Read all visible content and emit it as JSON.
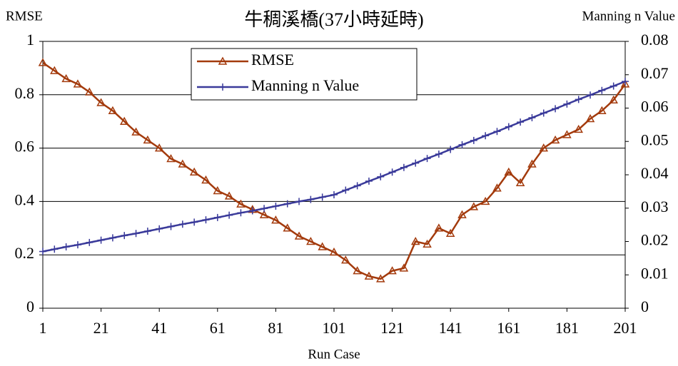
{
  "chart_data": {
    "type": "line",
    "title": "牛稠溪橋(37小時延時)",
    "xlabel": "Run Case",
    "ylabel": "RMSE",
    "y2label": "Manning n Value",
    "x": [
      1,
      5,
      9,
      13,
      17,
      21,
      25,
      29,
      33,
      37,
      41,
      45,
      49,
      53,
      57,
      61,
      65,
      69,
      73,
      77,
      81,
      85,
      89,
      93,
      97,
      101,
      105,
      109,
      113,
      117,
      121,
      125,
      129,
      133,
      137,
      141,
      145,
      149,
      153,
      157,
      161,
      165,
      169,
      173,
      177,
      181,
      185,
      189,
      193,
      197,
      201
    ],
    "series": [
      {
        "name": "RMSE",
        "color": "#a33a0c",
        "marker": "triangle",
        "values": [
          0.92,
          0.89,
          0.86,
          0.84,
          0.81,
          0.77,
          0.74,
          0.7,
          0.66,
          0.63,
          0.6,
          0.56,
          0.54,
          0.51,
          0.48,
          0.44,
          0.42,
          0.39,
          0.37,
          0.35,
          0.33,
          0.3,
          0.27,
          0.25,
          0.23,
          0.21,
          0.18,
          0.14,
          0.12,
          0.11,
          0.14,
          0.15,
          0.25,
          0.24,
          0.3,
          0.28,
          0.35,
          0.38,
          0.4,
          0.45,
          0.51,
          0.47,
          0.54,
          0.6,
          0.63,
          0.65,
          0.67,
          0.71,
          0.74,
          0.78,
          0.84
        ]
      },
      {
        "name": "Manning n Value",
        "color": "#3a3a9a",
        "marker": "plus",
        "axis": "y2",
        "values": [
          0.017,
          0.0177,
          0.0184,
          0.019,
          0.0197,
          0.0204,
          0.0211,
          0.0218,
          0.0224,
          0.0231,
          0.0238,
          0.0245,
          0.0252,
          0.0258,
          0.0265,
          0.0272,
          0.0279,
          0.0286,
          0.0292,
          0.0299,
          0.0306,
          0.0313,
          0.032,
          0.0326,
          0.0333,
          0.034,
          0.0354,
          0.0367,
          0.0381,
          0.0394,
          0.0408,
          0.0422,
          0.0435,
          0.0449,
          0.0462,
          0.0476,
          0.049,
          0.0503,
          0.0517,
          0.053,
          0.0544,
          0.0558,
          0.0571,
          0.0585,
          0.0598,
          0.0612,
          0.0626,
          0.0639,
          0.0653,
          0.0666,
          0.068
        ]
      }
    ],
    "xlim": [
      1,
      201
    ],
    "xticks": [
      1,
      21,
      41,
      61,
      81,
      101,
      121,
      141,
      161,
      181,
      201
    ],
    "ylim": [
      0,
      1
    ],
    "yticks": [
      0,
      0.2,
      0.4,
      0.6,
      0.8,
      1
    ],
    "y2lim": [
      0,
      0.08
    ],
    "y2ticks": [
      0,
      0.01,
      0.02,
      0.03,
      0.04,
      0.05,
      0.06,
      0.07,
      0.08
    ],
    "grid": true,
    "legend": "upper center"
  }
}
